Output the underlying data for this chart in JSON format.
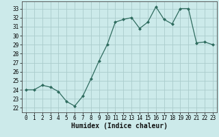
{
  "x": [
    0,
    1,
    2,
    3,
    4,
    5,
    6,
    7,
    8,
    9,
    10,
    11,
    12,
    13,
    14,
    15,
    16,
    17,
    18,
    19,
    20,
    21,
    22,
    23
  ],
  "y": [
    24,
    24,
    24.5,
    24.3,
    23.8,
    22.7,
    22.2,
    23.3,
    25.2,
    27.2,
    29.0,
    31.5,
    31.8,
    32.0,
    30.8,
    31.5,
    33.2,
    31.8,
    31.3,
    33.0,
    33.0,
    29.2,
    29.3,
    29.0
  ],
  "line_color": "#2e6b5e",
  "marker": "D",
  "marker_size": 2,
  "bg_color": "#cceaea",
  "grid_color": "#aacccc",
  "xlabel": "Humidex (Indice chaleur)",
  "ylim": [
    21.5,
    33.8
  ],
  "xlim": [
    -0.5,
    23.5
  ],
  "yticks": [
    22,
    23,
    24,
    25,
    26,
    27,
    28,
    29,
    30,
    31,
    32,
    33
  ],
  "xticks": [
    0,
    1,
    2,
    3,
    4,
    5,
    6,
    7,
    8,
    9,
    10,
    11,
    12,
    13,
    14,
    15,
    16,
    17,
    18,
    19,
    20,
    21,
    22,
    23
  ],
  "tick_fontsize": 5.5,
  "label_fontsize": 7.0
}
